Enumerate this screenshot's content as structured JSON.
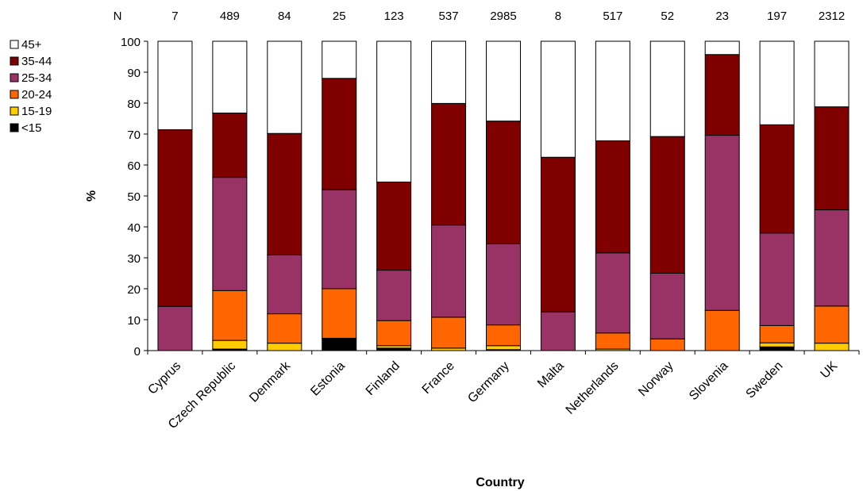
{
  "chart_data": {
    "type": "bar",
    "stacked": true,
    "title": "",
    "xlabel": "Country",
    "ylabel": "%",
    "ylim": [
      0,
      100
    ],
    "yticks": [
      0,
      10,
      20,
      30,
      40,
      50,
      60,
      70,
      80,
      90,
      100
    ],
    "grid": false,
    "legend_position": "top-left",
    "n_label": "N",
    "categories": [
      "Cyprus",
      "Czech Republic",
      "Denmark",
      "Estonia",
      "Finland",
      "France",
      "Germany",
      "Malta",
      "Netherlands",
      "Norway",
      "Slovenia",
      "Sweden",
      "UK"
    ],
    "n_values": [
      "7",
      "489",
      "84",
      "25",
      "123",
      "537",
      "2985",
      "8",
      "517",
      "52",
      "23",
      "197",
      "2312"
    ],
    "series": [
      {
        "name": "<15",
        "color": "#000000",
        "values": [
          0,
          0.5,
          0,
          4,
          0.8,
          0,
          0.3,
          0,
          0,
          0,
          0,
          1.2,
          0
        ]
      },
      {
        "name": "15-19",
        "color": "#FFCC00",
        "values": [
          0,
          2.8,
          2.4,
          0,
          0.8,
          0.8,
          1.3,
          0,
          0.5,
          0,
          0,
          1.3,
          2.4
        ]
      },
      {
        "name": "20-24",
        "color": "#FF6600",
        "values": [
          0,
          16.1,
          9.5,
          16,
          8.1,
          10.0,
          6.7,
          0,
          5.2,
          3.8,
          13.0,
          5.6,
          12.0
        ]
      },
      {
        "name": "25-34",
        "color": "#993366",
        "values": [
          14.3,
          36.6,
          19.0,
          32,
          16.3,
          29.8,
          26.2,
          12.5,
          25.9,
          21.2,
          56.6,
          29.9,
          31.1
        ]
      },
      {
        "name": "35-44",
        "color": "#800000",
        "values": [
          57.1,
          20.8,
          39.3,
          36,
          28.5,
          39.3,
          39.7,
          50.0,
          36.2,
          44.2,
          26.1,
          35.0,
          33.3
        ]
      },
      {
        "name": "45+",
        "color": "#FFFFFF",
        "values": [
          28.6,
          23.2,
          29.8,
          12,
          45.5,
          20.1,
          25.8,
          37.5,
          32.2,
          30.8,
          4.3,
          27.0,
          21.2
        ]
      }
    ]
  }
}
